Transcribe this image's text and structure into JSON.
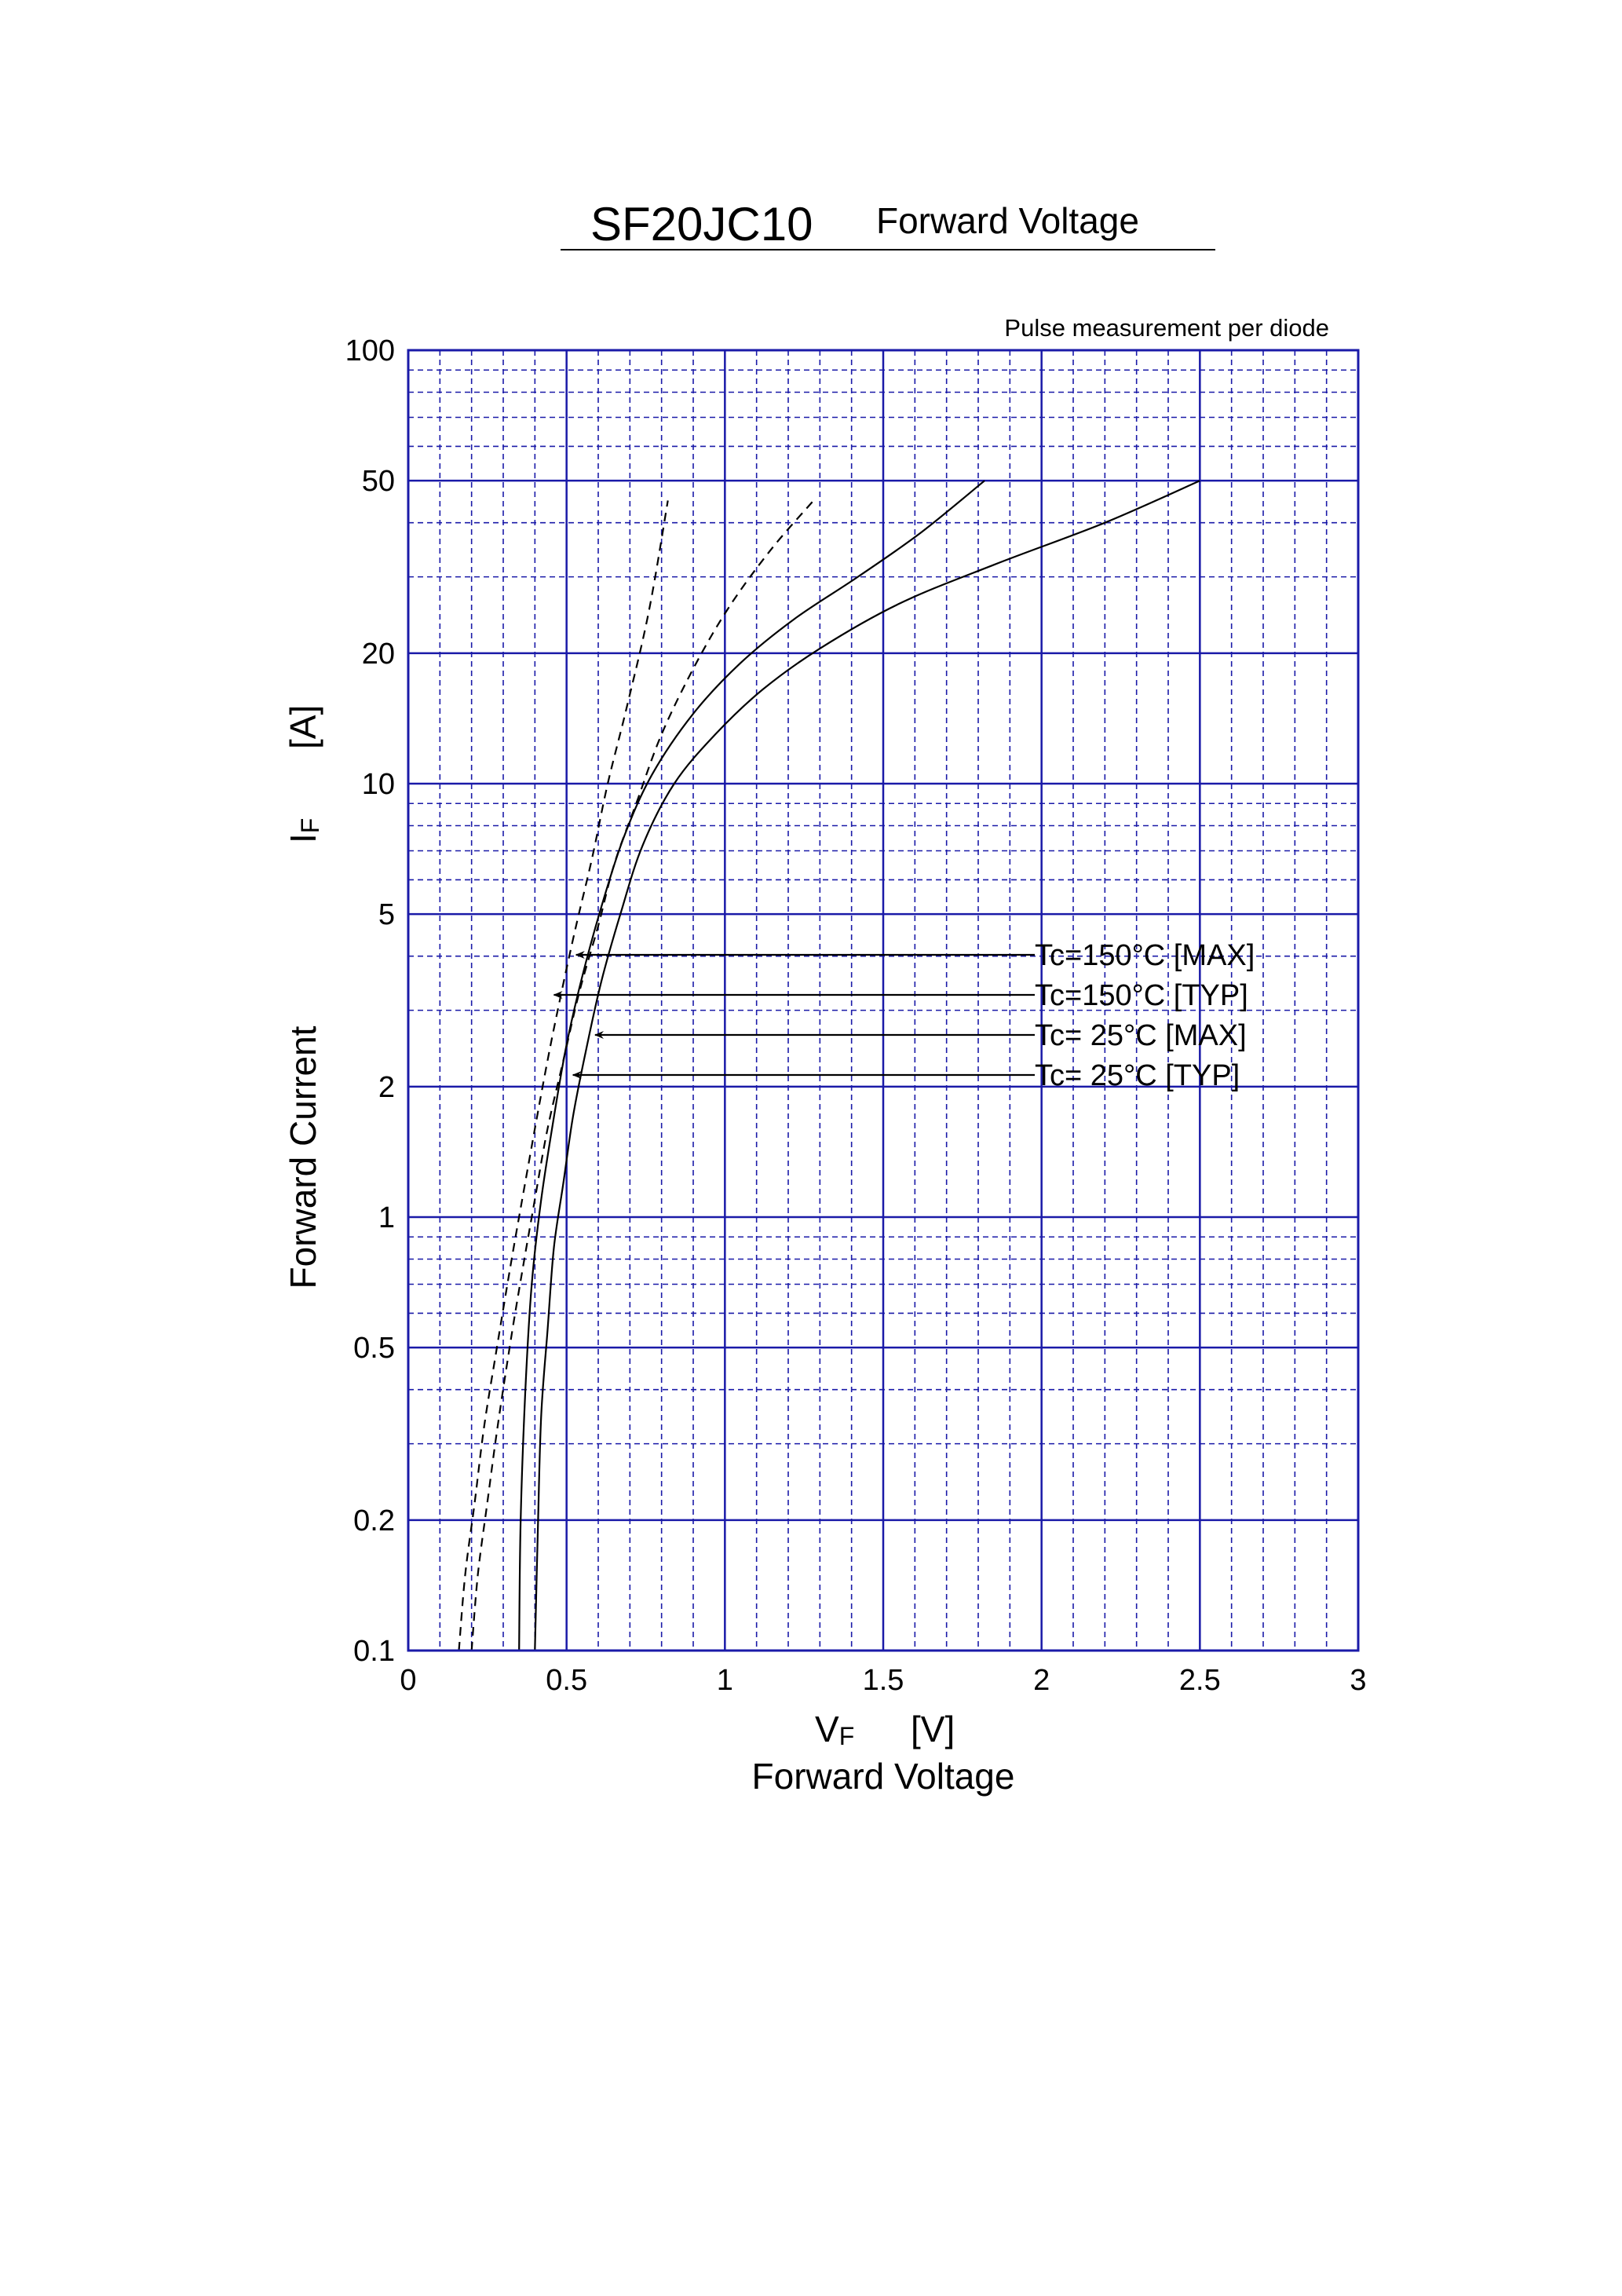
{
  "chart_data": {
    "type": "line",
    "title": "SF20JC10",
    "subtitle": "Forward Voltage",
    "note": "Pulse measurement per diode",
    "xlabel": {
      "symbol": "V",
      "subscript": "F",
      "unit": "[V]",
      "name": "Forward Voltage"
    },
    "ylabel": {
      "name": "Forward Current",
      "symbol": "I",
      "subscript": "F",
      "unit": "[A]"
    },
    "xlim": [
      0,
      3
    ],
    "ylim": [
      0.1,
      100
    ],
    "yscale": "log",
    "grid": true,
    "x_ticks": [
      "0",
      "0.5",
      "1",
      "1.5",
      "2",
      "2.5",
      "3"
    ],
    "y_ticks": [
      "0.1",
      "0.2",
      "0.5",
      "1",
      "2",
      "5",
      "10",
      "20",
      "50",
      "100"
    ],
    "series": [
      {
        "name": "Tc=150°C [MAX]",
        "style": "dashed",
        "x": [
          0.2,
          0.22,
          0.25,
          0.28,
          0.32,
          0.36,
          0.4,
          0.44,
          0.49,
          0.54,
          0.6,
          0.65,
          0.72,
          0.8,
          0.91,
          1.02,
          1.15,
          1.28
        ],
        "y": [
          0.1,
          0.15,
          0.22,
          0.32,
          0.5,
          0.75,
          1.1,
          1.6,
          2.3,
          3.3,
          4.7,
          6.5,
          9.0,
          13.0,
          19.0,
          26.0,
          35.0,
          45.0
        ]
      },
      {
        "name": "Tc=150°C [TYP]",
        "style": "dashed",
        "x": [
          0.16,
          0.18,
          0.21,
          0.24,
          0.28,
          0.32,
          0.36,
          0.4,
          0.44,
          0.48,
          0.53,
          0.58,
          0.63,
          0.69,
          0.76,
          0.82
        ],
        "y": [
          0.1,
          0.15,
          0.22,
          0.33,
          0.5,
          0.75,
          1.1,
          1.6,
          2.3,
          3.2,
          4.7,
          6.7,
          10.0,
          15.0,
          25.0,
          45.0
        ]
      },
      {
        "name": "Tc=  25°C [MAX]",
        "style": "solid",
        "x": [
          0.4,
          0.41,
          0.42,
          0.44,
          0.46,
          0.49,
          0.52,
          0.56,
          0.61,
          0.67,
          0.74,
          0.84,
          0.97,
          1.12,
          1.3,
          1.55,
          1.85,
          2.2,
          2.5
        ],
        "y": [
          0.1,
          0.2,
          0.35,
          0.55,
          0.85,
          1.2,
          1.7,
          2.4,
          3.5,
          5.0,
          7.2,
          10.0,
          13.0,
          16.5,
          20.5,
          26.0,
          32.0,
          40.0,
          50.0
        ]
      },
      {
        "name": "Tc=  25°C [TYP]",
        "style": "solid",
        "x": [
          0.35,
          0.355,
          0.37,
          0.39,
          0.42,
          0.46,
          0.5,
          0.55,
          0.61,
          0.68,
          0.77,
          0.9,
          1.05,
          1.22,
          1.42,
          1.62,
          1.82
        ],
        "y": [
          0.1,
          0.2,
          0.4,
          0.7,
          1.1,
          1.7,
          2.5,
          3.6,
          5.2,
          7.5,
          10.5,
          14.5,
          19.0,
          24.0,
          30.0,
          38.0,
          50.0
        ]
      }
    ],
    "annotations": [
      {
        "text": "Tc=150°C [MAX]",
        "arrow_to": {
          "x": 0.53,
          "y": 4.2
        }
      },
      {
        "text": "Tc=150°C [TYP]",
        "arrow_to": {
          "x": 0.46,
          "y": 3.4
        }
      },
      {
        "text": "Tc=  25°C [MAX]",
        "arrow_to": {
          "x": 0.59,
          "y": 2.75
        }
      },
      {
        "text": "Tc=  25°C [TYP]",
        "arrow_to": {
          "x": 0.52,
          "y": 2.2
        }
      }
    ]
  }
}
